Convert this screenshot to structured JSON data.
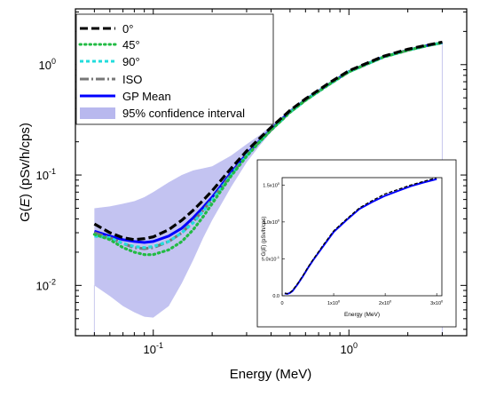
{
  "chart_data": [
    {
      "type": "line",
      "xlabel": "Energy (MeV)",
      "ylabel_prefix": "G(",
      "ylabel_var": "E",
      "ylabel_suffix": ") (pSv/h/cps)",
      "xscale": "log",
      "yscale": "log",
      "xlim": [
        0.04,
        4.0
      ],
      "ylim": [
        0.0035,
        3.2
      ],
      "xticks": [
        {
          "value": 0.1,
          "base": "10",
          "exp": "-1"
        },
        {
          "value": 1,
          "base": "10",
          "exp": "0"
        }
      ],
      "yticks": [
        {
          "value": 0.01,
          "base": "10",
          "exp": "-2"
        },
        {
          "value": 0.1,
          "base": "10",
          "exp": "-1"
        },
        {
          "value": 1,
          "base": "10",
          "exp": "0"
        }
      ],
      "legend_position": "top-left",
      "x": [
        0.05,
        0.06,
        0.07,
        0.08,
        0.09,
        0.1,
        0.12,
        0.14,
        0.16,
        0.18,
        0.2,
        0.25,
        0.3,
        0.35,
        0.4,
        0.5,
        0.6,
        0.8,
        1.0,
        1.25,
        1.5,
        2.0,
        2.5,
        3.0
      ],
      "series": [
        {
          "name": "0°",
          "color": "#000000",
          "dash": "dash",
          "values": [
            0.036,
            0.03,
            0.027,
            0.026,
            0.0265,
            0.0275,
            0.032,
            0.039,
            0.048,
            0.059,
            0.072,
            0.115,
            0.165,
            0.215,
            0.27,
            0.385,
            0.49,
            0.69,
            0.88,
            1.04,
            1.19,
            1.38,
            1.5,
            1.6
          ]
        },
        {
          "name": "45°",
          "color": "#22bb44",
          "dash": "dot",
          "values": [
            0.029,
            0.026,
            0.022,
            0.02,
            0.019,
            0.019,
            0.021,
            0.025,
            0.032,
            0.042,
            0.055,
            0.098,
            0.148,
            0.2,
            0.255,
            0.37,
            0.475,
            0.67,
            0.86,
            1.02,
            1.17,
            1.35,
            1.48,
            1.58
          ]
        },
        {
          "name": "90°",
          "color": "#22dddd",
          "dash": "shortdash",
          "values": [
            0.028,
            0.027,
            0.024,
            0.0225,
            0.022,
            0.0225,
            0.025,
            0.03,
            0.037,
            0.047,
            0.059,
            0.1,
            0.15,
            0.2,
            0.255,
            0.37,
            0.475,
            0.67,
            0.86,
            1.02,
            1.17,
            1.35,
            1.48,
            1.58
          ]
        },
        {
          "name": "ISO",
          "color": "#777777",
          "dash": "dashdot",
          "values": [
            0.03,
            0.027,
            0.024,
            0.022,
            0.0215,
            0.022,
            0.025,
            0.03,
            0.038,
            0.048,
            0.06,
            0.101,
            0.151,
            0.201,
            0.256,
            0.37,
            0.476,
            0.67,
            0.86,
            1.02,
            1.17,
            1.35,
            1.48,
            1.58
          ]
        },
        {
          "name": "GP Mean",
          "color": "#0000ff",
          "dash": "solid",
          "values": [
            0.031,
            0.028,
            0.026,
            0.025,
            0.0245,
            0.025,
            0.028,
            0.033,
            0.041,
            0.051,
            0.063,
            0.105,
            0.155,
            0.205,
            0.26,
            0.375,
            0.48,
            0.675,
            0.865,
            1.025,
            1.175,
            1.355,
            1.485,
            1.58
          ]
        },
        {
          "name": "95% confidence interval",
          "color": "#b8b8ee",
          "type": "band",
          "lower": [
            0.01,
            0.008,
            0.0065,
            0.0057,
            0.0052,
            0.0051,
            0.0065,
            0.0105,
            0.017,
            0.027,
            0.039,
            0.078,
            0.13,
            0.185,
            0.245,
            0.36,
            0.465,
            0.665,
            0.855,
            1.015,
            1.165,
            1.345,
            1.475,
            1.575
          ],
          "upper": [
            0.05,
            0.052,
            0.055,
            0.058,
            0.063,
            0.07,
            0.086,
            0.1,
            0.11,
            0.115,
            0.12,
            0.15,
            0.19,
            0.23,
            0.28,
            0.39,
            0.495,
            0.685,
            0.875,
            1.035,
            1.185,
            1.365,
            1.495,
            1.59
          ]
        }
      ]
    },
    {
      "type": "line",
      "role": "inset",
      "xlabel": "Energy (MeV)",
      "ylabel_prefix": "G(",
      "ylabel_var": "E",
      "ylabel_suffix": ") (pSv/h/cps)",
      "xscale": "linear",
      "yscale": "linear",
      "xlim": [
        0,
        3.1
      ],
      "ylim": [
        0,
        1.6
      ],
      "xticks": [
        {
          "value": 0,
          "mant": "0",
          "exp": ""
        },
        {
          "value": 1,
          "mant": "1x10",
          "exp": "0"
        },
        {
          "value": 2,
          "mant": "2x10",
          "exp": "0"
        },
        {
          "value": 3,
          "mant": "3x10",
          "exp": "0"
        }
      ],
      "yticks": [
        {
          "value": 0,
          "mant": "0.0",
          "exp": ""
        },
        {
          "value": 0.5,
          "mant": "5.0x10",
          "exp": "-1"
        },
        {
          "value": 1.0,
          "mant": "1.0x10",
          "exp": "0"
        },
        {
          "value": 1.5,
          "mant": "1.5x10",
          "exp": "0"
        }
      ],
      "x": [
        0.05,
        0.1,
        0.15,
        0.2,
        0.3,
        0.4,
        0.5,
        0.6,
        0.8,
        1.0,
        1.25,
        1.5,
        1.75,
        2.0,
        2.25,
        2.5,
        2.75,
        3.0
      ],
      "series": [
        {
          "name": "0°",
          "color": "#000000",
          "dash": "dash",
          "values": [
            0.036,
            0.0275,
            0.043,
            0.072,
            0.165,
            0.27,
            0.385,
            0.49,
            0.69,
            0.88,
            1.04,
            1.19,
            1.29,
            1.38,
            1.44,
            1.5,
            1.55,
            1.6
          ]
        },
        {
          "name": "GP Mean",
          "color": "#0000ff",
          "dash": "solid",
          "values": [
            0.031,
            0.025,
            0.037,
            0.063,
            0.155,
            0.26,
            0.375,
            0.48,
            0.675,
            0.865,
            1.025,
            1.175,
            1.27,
            1.355,
            1.42,
            1.485,
            1.535,
            1.58
          ]
        }
      ]
    }
  ]
}
